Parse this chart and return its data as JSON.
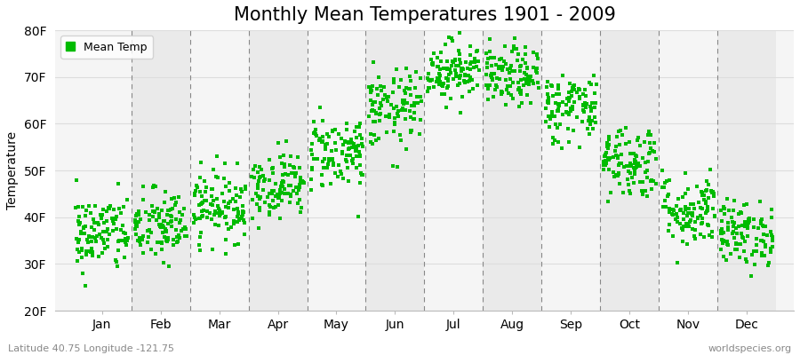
{
  "title": "Monthly Mean Temperatures 1901 - 2009",
  "ylabel": "Temperature",
  "months": [
    "Jan",
    "Feb",
    "Mar",
    "Apr",
    "May",
    "Jun",
    "Jul",
    "Aug",
    "Sep",
    "Oct",
    "Nov",
    "Dec"
  ],
  "ylim": [
    20,
    80
  ],
  "yticks": [
    20,
    30,
    40,
    50,
    60,
    70,
    80
  ],
  "ytick_labels": [
    "20F",
    "30F",
    "40F",
    "50F",
    "60F",
    "70F",
    "80F"
  ],
  "mean_temps": [
    36.5,
    38.0,
    42.5,
    47.0,
    54.0,
    63.0,
    71.5,
    70.0,
    63.5,
    52.0,
    41.5,
    36.5
  ],
  "std_temps": [
    4.2,
    4.0,
    3.8,
    3.5,
    4.0,
    4.2,
    3.2,
    3.2,
    3.8,
    4.0,
    4.0,
    3.5
  ],
  "n_years": 109,
  "marker_color": "#00BB00",
  "marker": "s",
  "marker_size": 3.5,
  "bg_color": "#F5F5F5",
  "alt_bg_color": "#EAEAEA",
  "grid_color": "#DDDDDD",
  "dashed_line_color": "#888888",
  "title_fontsize": 15,
  "axis_label_fontsize": 10,
  "tick_label_fontsize": 10,
  "footer_left": "Latitude 40.75 Longitude -121.75",
  "footer_right": "worldspecies.org",
  "legend_label": "Mean Temp"
}
